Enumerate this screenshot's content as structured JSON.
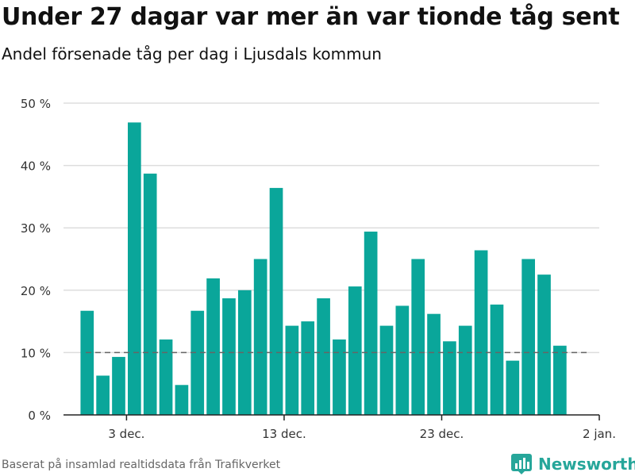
{
  "header": {
    "title": "Under 27 dagar var mer än var tionde tåg sent",
    "subtitle": "Andel försenade tåg per dag i Ljusdals kommun"
  },
  "footer": {
    "source": "Baserat på insamlad realtidsdata från Trafikverket",
    "brand": "Newsworthy"
  },
  "colors": {
    "bar": "#0aa69a",
    "grid": "#dddddd",
    "axis": "#222222",
    "reference": "#666666",
    "brand": "#26a69a"
  },
  "chart_data": {
    "type": "bar",
    "title": "Under 27 dagar var mer än var tionde tåg sent",
    "subtitle": "Andel försenade tåg per dag i Ljusdals kommun",
    "xlabel": "",
    "ylabel": "",
    "ylim": [
      0,
      50
    ],
    "yticks": [
      0,
      10,
      20,
      30,
      40,
      50
    ],
    "ytick_labels": [
      "0 %",
      "10 %",
      "20 %",
      "30 %",
      "40 %",
      "50 %"
    ],
    "xtick_labels": [
      {
        "label": "3 dec.",
        "date": "2023-12-03"
      },
      {
        "label": "13 dec.",
        "date": "2023-12-13"
      },
      {
        "label": "23 dec.",
        "date": "2023-12-23"
      },
      {
        "label": "2 jan.",
        "date": "2024-01-02"
      }
    ],
    "x_range": [
      "2023-11-29",
      "2024-01-02"
    ],
    "reference_line": {
      "value": 10,
      "style": "dashed"
    },
    "grid": true,
    "legend": "none",
    "points": [
      {
        "date": "2023-11-30",
        "value": 16.7
      },
      {
        "date": "2023-12-01",
        "value": 6.3
      },
      {
        "date": "2023-12-02",
        "value": 9.3
      },
      {
        "date": "2023-12-03",
        "value": 46.9
      },
      {
        "date": "2023-12-04",
        "value": 38.7
      },
      {
        "date": "2023-12-05",
        "value": 12.1
      },
      {
        "date": "2023-12-06",
        "value": 4.8
      },
      {
        "date": "2023-12-07",
        "value": 16.7
      },
      {
        "date": "2023-12-08",
        "value": 21.9
      },
      {
        "date": "2023-12-09",
        "value": 18.7
      },
      {
        "date": "2023-12-10",
        "value": 20.0
      },
      {
        "date": "2023-12-11",
        "value": 25.0
      },
      {
        "date": "2023-12-12",
        "value": 36.4
      },
      {
        "date": "2023-12-13",
        "value": 14.3
      },
      {
        "date": "2023-12-14",
        "value": 15.0
      },
      {
        "date": "2023-12-15",
        "value": 18.7
      },
      {
        "date": "2023-12-16",
        "value": 12.1
      },
      {
        "date": "2023-12-17",
        "value": 20.6
      },
      {
        "date": "2023-12-18",
        "value": 29.4
      },
      {
        "date": "2023-12-19",
        "value": 14.3
      },
      {
        "date": "2023-12-20",
        "value": 17.5
      },
      {
        "date": "2023-12-21",
        "value": 25.0
      },
      {
        "date": "2023-12-22",
        "value": 16.2
      },
      {
        "date": "2023-12-23",
        "value": 11.8
      },
      {
        "date": "2023-12-24",
        "value": 14.3
      },
      {
        "date": "2023-12-25",
        "value": 26.4
      },
      {
        "date": "2023-12-26",
        "value": 17.7
      },
      {
        "date": "2023-12-27",
        "value": 8.7
      },
      {
        "date": "2023-12-28",
        "value": 25.0
      },
      {
        "date": "2023-12-29",
        "value": 22.5
      },
      {
        "date": "2023-12-30",
        "value": 11.1
      }
    ]
  }
}
